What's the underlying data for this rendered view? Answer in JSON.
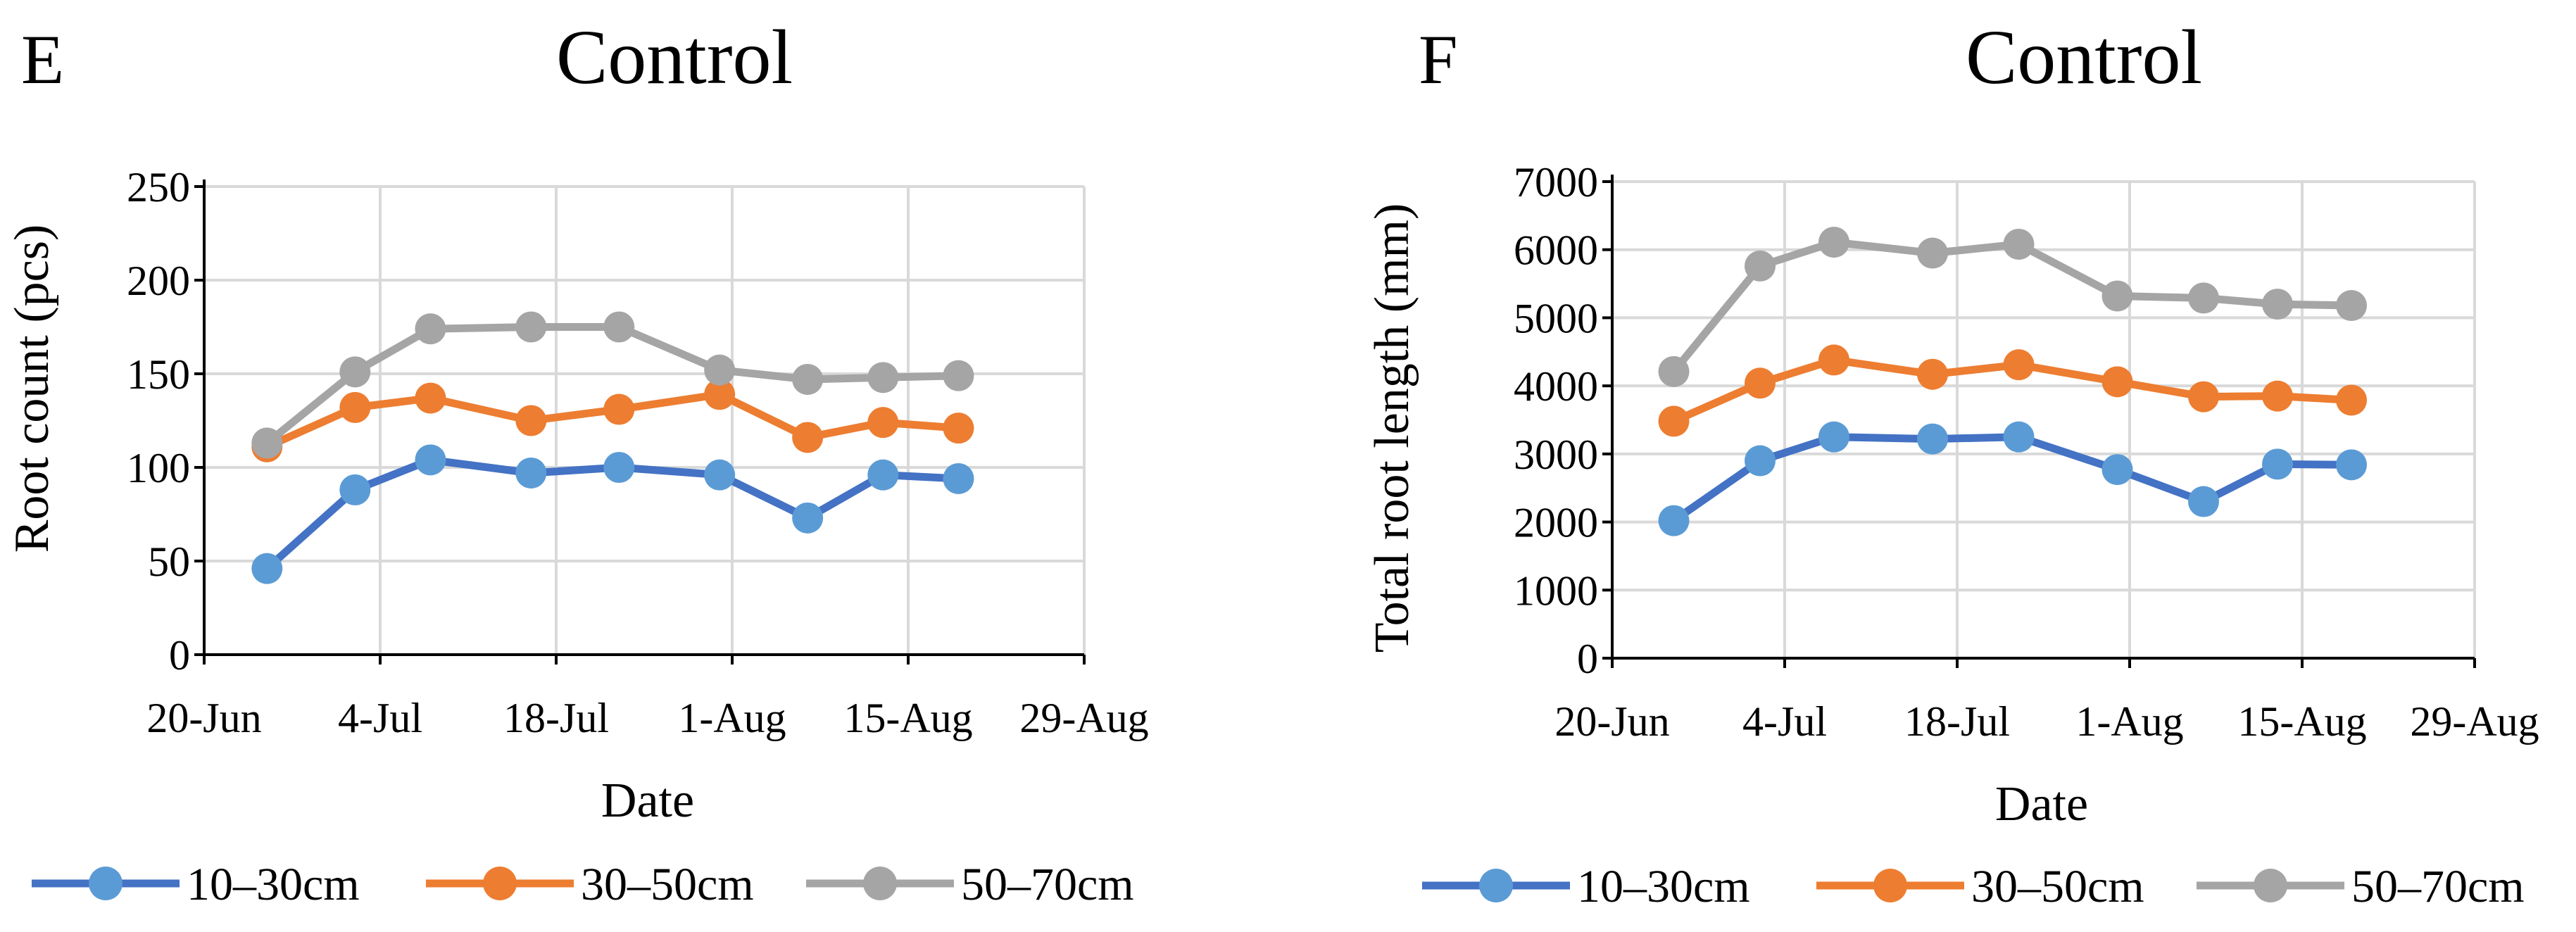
{
  "colors": {
    "series_1": "#4472C4",
    "series_1_marker": "#5B9BD5",
    "series_2": "#ED7D31",
    "series_3": "#A5A5A5",
    "grid": "#D9D9D9",
    "axis": "#000000"
  },
  "chart_data": [
    {
      "panel_label": "E",
      "type": "line",
      "title": "Control",
      "xlabel": "Date",
      "ylabel": "Root count (pcs)",
      "x_ticks": [
        "20-Jun",
        "4-Jul",
        "18-Jul",
        "1-Aug",
        "15-Aug",
        "29-Aug"
      ],
      "x_tick_days": [
        0,
        14,
        28,
        42,
        56,
        70
      ],
      "xlim": [
        0,
        70
      ],
      "ylim": [
        0,
        250
      ],
      "y_ticks": [
        "0",
        "50",
        "100",
        "150",
        "200",
        "250"
      ],
      "y_tick_values": [
        0,
        50,
        100,
        150,
        200,
        250
      ],
      "grid": true,
      "legend_position": "bottom",
      "x_days": [
        5,
        12,
        18,
        26,
        33,
        41,
        48,
        54,
        60
      ],
      "series": [
        {
          "name": "10–30cm",
          "values": [
            46,
            88,
            104,
            97,
            100,
            96,
            73,
            96,
            94
          ]
        },
        {
          "name": "30–50cm",
          "values": [
            111,
            132,
            137,
            125,
            131,
            139,
            116,
            124,
            121
          ]
        },
        {
          "name": "50–70cm",
          "values": [
            113,
            151,
            174,
            175,
            175,
            152,
            147,
            148,
            149
          ]
        }
      ]
    },
    {
      "panel_label": "F",
      "type": "line",
      "title": "Control",
      "xlabel": "Date",
      "ylabel": "Total root length (mm)",
      "x_ticks": [
        "20-Jun",
        "4-Jul",
        "18-Jul",
        "1-Aug",
        "15-Aug",
        "29-Aug"
      ],
      "x_tick_days": [
        0,
        14,
        28,
        42,
        56,
        70
      ],
      "xlim": [
        0,
        70
      ],
      "ylim": [
        0,
        7000
      ],
      "y_ticks": [
        "0",
        "1000",
        "2000",
        "3000",
        "4000",
        "5000",
        "6000",
        "7000"
      ],
      "y_tick_values": [
        0,
        1000,
        2000,
        3000,
        4000,
        5000,
        6000,
        7000
      ],
      "grid": true,
      "legend_position": "bottom",
      "x_days": [
        5,
        12,
        18,
        26,
        33,
        41,
        48,
        54,
        60
      ],
      "series": [
        {
          "name": "10–30cm",
          "values": [
            2020,
            2900,
            3250,
            3220,
            3250,
            2770,
            2300,
            2850,
            2840
          ]
        },
        {
          "name": "30–50cm",
          "values": [
            3480,
            4040,
            4380,
            4170,
            4310,
            4060,
            3840,
            3850,
            3790
          ]
        },
        {
          "name": "50–70cm",
          "values": [
            4210,
            5760,
            6110,
            5950,
            6080,
            5320,
            5290,
            5200,
            5180
          ]
        }
      ]
    }
  ]
}
